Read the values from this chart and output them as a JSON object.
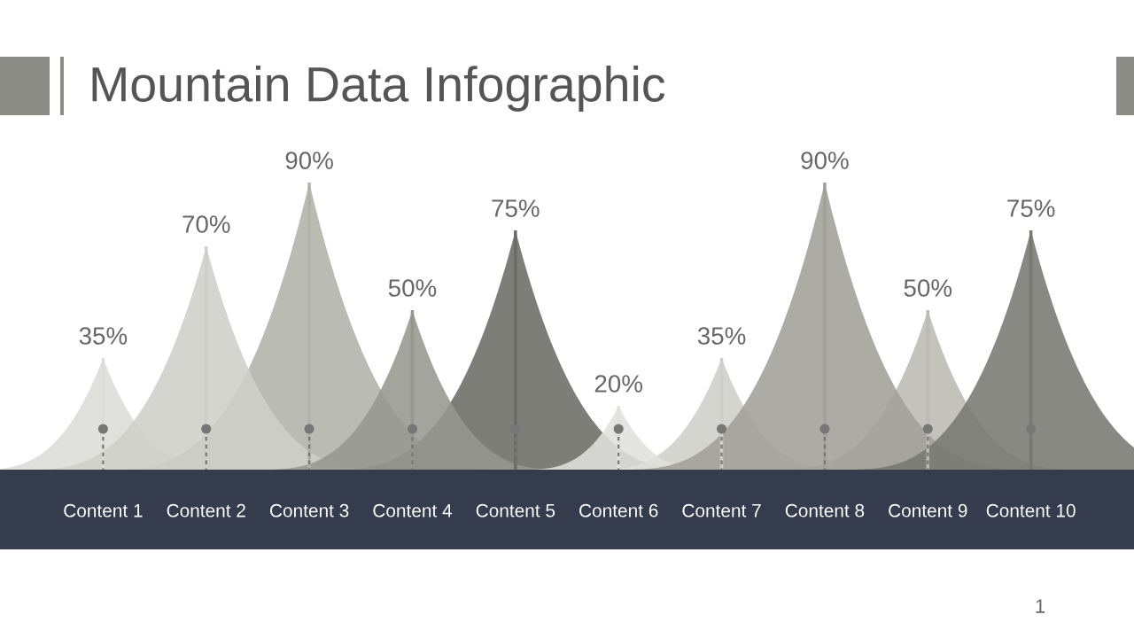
{
  "chart_data": {
    "type": "bar",
    "title": "Mountain Data Infographic",
    "categories": [
      "Content 1",
      "Content 2",
      "Content 3",
      "Content 4",
      "Content 5",
      "Content 6",
      "Content 7",
      "Content 8",
      "Content 9",
      "Content 10"
    ],
    "values": [
      35,
      70,
      90,
      50,
      75,
      20,
      35,
      90,
      50,
      75
    ],
    "colors": [
      "#dcdcd8",
      "#cfcfc9",
      "#b1b2a9",
      "#96978e",
      "#6b6c65",
      "#e0e0dc",
      "#cfcfc9",
      "#a0a198",
      "#bbbbb3",
      "#787971"
    ],
    "data_labels": true,
    "value_labels": [
      "35%",
      "70%",
      "90%",
      "50%",
      "75%",
      "20%",
      "35%",
      "90%",
      "50%",
      "75%"
    ],
    "annotations": [
      "1"
    ]
  }
}
